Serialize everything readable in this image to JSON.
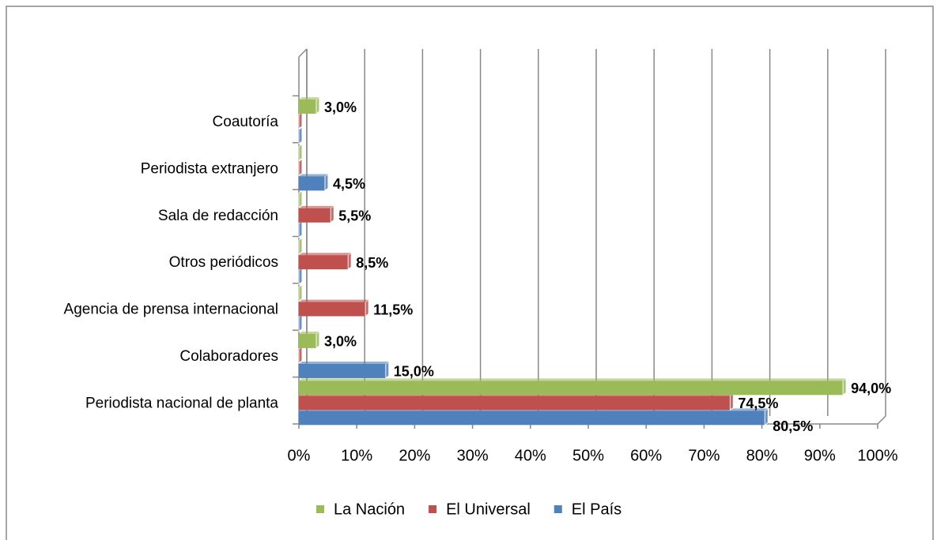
{
  "chart_data": {
    "type": "bar",
    "orientation": "horizontal",
    "categories": [
      "Periodista nacional de planta",
      "Colaboradores",
      "Agencia de prensa internacional",
      "Otros periódicos",
      "Sala de redacción",
      "Periodista extranjero",
      "Coautoría"
    ],
    "series": [
      {
        "name": "El País",
        "color": "#4f81bd",
        "values": [
          80.5,
          15.0,
          0,
          0,
          0,
          4.5,
          0
        ],
        "value_labels": [
          "80,5%",
          "15,0%",
          null,
          null,
          null,
          "4,5%",
          null
        ]
      },
      {
        "name": "El Universal",
        "color": "#c0504d",
        "values": [
          74.5,
          0,
          11.5,
          8.5,
          5.5,
          0,
          0
        ],
        "value_labels": [
          "74,5%",
          null,
          "11,5%",
          "8,5%",
          "5,5%",
          null,
          null
        ]
      },
      {
        "name": "La Nación",
        "color": "#9bbb59",
        "values": [
          94.0,
          3.0,
          0,
          0,
          0,
          0,
          3.0
        ],
        "value_labels": [
          "94,0%",
          "3,0%",
          null,
          null,
          null,
          null,
          "3,0%"
        ]
      }
    ],
    "xlim": [
      0,
      100
    ],
    "xticks": [
      {
        "value": 0,
        "label": "0%"
      },
      {
        "value": 10,
        "label": "10%"
      },
      {
        "value": 20,
        "label": "20%"
      },
      {
        "value": 30,
        "label": "30%"
      },
      {
        "value": 40,
        "label": "40%"
      },
      {
        "value": 50,
        "label": "50%"
      },
      {
        "value": 60,
        "label": "60%"
      },
      {
        "value": 70,
        "label": "70%"
      },
      {
        "value": 80,
        "label": "80%"
      },
      {
        "value": 90,
        "label": "90%"
      },
      {
        "value": 100,
        "label": "100%"
      }
    ],
    "grid": true,
    "legend": "bottom"
  }
}
